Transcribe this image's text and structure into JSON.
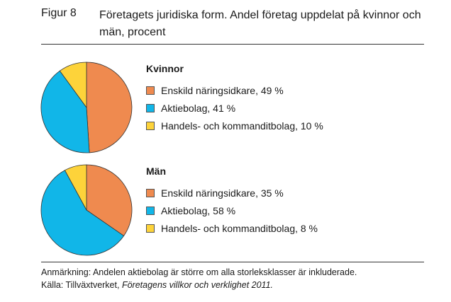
{
  "figure": {
    "label": "Figur 8",
    "title": "Företagets juridiska form. Andel företag uppdelat på kvinnor och män, procent"
  },
  "colors": {
    "enskild": "#ef8a4f",
    "aktiebolag": "#11b6e8",
    "handels": "#fdd33a"
  },
  "chart_data": [
    {
      "type": "pie",
      "title": "Kvinnor",
      "categories": [
        "Enskild näringsidkare",
        "Aktiebolag",
        "Handels- och kommanditbolag"
      ],
      "values": [
        49,
        41,
        10
      ],
      "legend_labels": [
        "Enskild näringsidkare, 49 %",
        "Aktiebolag, 41 %",
        "Handels- och kommanditbolag, 10 %"
      ],
      "legend": "right"
    },
    {
      "type": "pie",
      "title": "Män",
      "categories": [
        "Enskild näringsidkare",
        "Aktiebolag",
        "Handels- och kommanditbolag"
      ],
      "values": [
        35,
        58,
        8
      ],
      "legend_labels": [
        "Enskild näringsidkare, 35 %",
        "Aktiebolag, 58 %",
        "Handels- och kommanditbolag, 8 %"
      ],
      "legend": "right"
    }
  ],
  "notes": {
    "anmarkning": "Anmärkning: Andelen aktiebolag är större om alla storleksklasser är inkluderade.",
    "kalla_prefix": "Källa: Tillväxtverket, ",
    "kalla_italic": "Företagens villkor och verklighet 2011."
  }
}
